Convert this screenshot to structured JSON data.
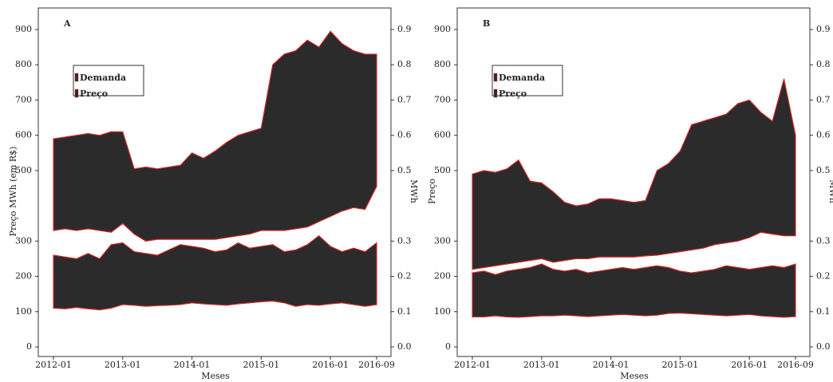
{
  "chart_data": [
    {
      "type": "band",
      "title": "A",
      "xlabel": "Meses",
      "ylabel": "Preço MWh (em R$)",
      "y2label": "MWh",
      "x": [
        "2012-01",
        "2012-03",
        "2012-05",
        "2012-07",
        "2012-09",
        "2012-11",
        "2013-01",
        "2013-03",
        "2013-05",
        "2013-07",
        "2013-09",
        "2013-11",
        "2014-01",
        "2014-03",
        "2014-05",
        "2014-07",
        "2014-09",
        "2014-11",
        "2015-01",
        "2015-03",
        "2015-05",
        "2015-07",
        "2015-09",
        "2015-11",
        "2016-01",
        "2016-03",
        "2016-05",
        "2016-07",
        "2016-09"
      ],
      "xlim": [
        "2012-01",
        "2016-09"
      ],
      "xticks": [
        "2012-01",
        "2013-01",
        "2014-01",
        "2015-01",
        "2016-01",
        "2016-09"
      ],
      "ylim": [
        0,
        900
      ],
      "yticks": [
        0,
        100,
        200,
        300,
        500,
        600,
        700,
        800,
        900
      ],
      "y2lim": [
        0,
        0.9
      ],
      "y2ticks": [
        {
          "value": 0,
          "label": "0.0"
        },
        0.1,
        0.2,
        0.3,
        0.5,
        0.6,
        0.7,
        0.8,
        0.9
      ],
      "edgecolor": "#d62728",
      "series": [
        {
          "name": "Demanda",
          "color": "#2b2b2b",
          "high": [
            260,
            255,
            250,
            265,
            250,
            290,
            295,
            270,
            265,
            260,
            275,
            290,
            285,
            280,
            270,
            275,
            295,
            280,
            285,
            290,
            270,
            275,
            290,
            315,
            285,
            270,
            280,
            270,
            295
          ],
          "low": [
            110,
            108,
            112,
            108,
            105,
            110,
            120,
            118,
            115,
            117,
            118,
            120,
            125,
            122,
            120,
            118,
            122,
            125,
            128,
            130,
            125,
            115,
            120,
            118,
            122,
            125,
            120,
            115,
            120
          ]
        },
        {
          "name": "Preço",
          "color": "#2b2b2b",
          "high": [
            590,
            595,
            600,
            605,
            600,
            610,
            610,
            505,
            510,
            505,
            510,
            515,
            550,
            535,
            555,
            580,
            600,
            610,
            620,
            800,
            830,
            840,
            870,
            850,
            895,
            860,
            840,
            830,
            830
          ],
          "low": [
            330,
            335,
            330,
            335,
            330,
            325,
            350,
            320,
            300,
            305,
            305,
            305,
            305,
            305,
            305,
            310,
            315,
            320,
            330,
            330,
            330,
            335,
            340,
            355,
            370,
            385,
            395,
            390,
            455
          ]
        }
      ]
    },
    {
      "type": "band",
      "title": "B",
      "xlabel": "Meses",
      "ylabel": "Preço",
      "y2label": "MWh",
      "x": [
        "2012-01",
        "2012-03",
        "2012-05",
        "2012-07",
        "2012-09",
        "2012-11",
        "2013-01",
        "2013-03",
        "2013-05",
        "2013-07",
        "2013-09",
        "2013-11",
        "2014-01",
        "2014-03",
        "2014-05",
        "2014-07",
        "2014-09",
        "2014-11",
        "2015-01",
        "2015-03",
        "2015-05",
        "2015-07",
        "2015-09",
        "2015-11",
        "2016-01",
        "2016-03",
        "2016-05",
        "2016-07",
        "2016-09"
      ],
      "xlim": [
        "2012-01",
        "2016-09"
      ],
      "xticks": [
        "2012-01",
        "2013-01",
        "2014-01",
        "2015-01",
        "2016-01",
        "2016-09"
      ],
      "ylim": [
        0,
        900
      ],
      "yticks": [
        0,
        100,
        200,
        300,
        500,
        600,
        700,
        800,
        900
      ],
      "y2lim": [
        0,
        0.9
      ],
      "y2ticks": [
        {
          "value": 0,
          "label": "0.0"
        },
        0.1,
        0.2,
        0.3,
        0.5,
        0.6,
        0.7,
        0.8,
        0.9
      ],
      "edgecolor": "#d62728",
      "series": [
        {
          "name": "Demanda",
          "color": "#2b2b2b",
          "high": [
            210,
            215,
            205,
            215,
            220,
            225,
            235,
            220,
            215,
            220,
            210,
            215,
            220,
            225,
            220,
            225,
            230,
            225,
            215,
            210,
            215,
            220,
            230,
            225,
            220,
            225,
            230,
            225,
            235
          ],
          "low": [
            85,
            85,
            88,
            85,
            84,
            86,
            88,
            88,
            90,
            88,
            86,
            88,
            90,
            92,
            90,
            88,
            90,
            95,
            96,
            94,
            92,
            90,
            88,
            90,
            92,
            88,
            86,
            84,
            86
          ]
        },
        {
          "name": "Preço",
          "color": "#2b2b2b",
          "high": [
            490,
            500,
            495,
            505,
            530,
            470,
            465,
            440,
            410,
            400,
            405,
            420,
            420,
            415,
            410,
            415,
            500,
            520,
            555,
            630,
            640,
            650,
            660,
            690,
            700,
            665,
            640,
            760,
            600
          ],
          "low": [
            220,
            225,
            230,
            235,
            240,
            245,
            250,
            240,
            245,
            250,
            250,
            255,
            255,
            255,
            255,
            258,
            260,
            265,
            270,
            275,
            280,
            290,
            295,
            300,
            310,
            325,
            320,
            315,
            315
          ]
        }
      ]
    }
  ]
}
